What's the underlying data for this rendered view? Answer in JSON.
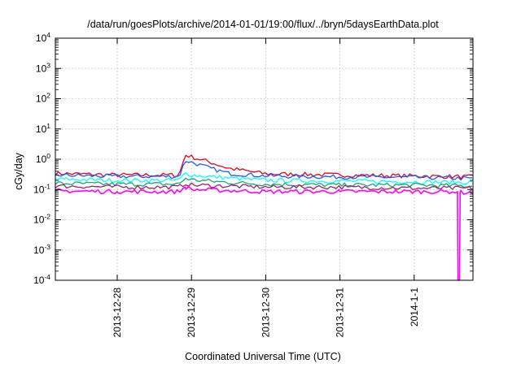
{
  "chart_data": {
    "type": "line",
    "title": "/data/run/goesPlots/archive/2014-01-01/19:00/flux/../bryn/5daysEarthData.plot",
    "xlabel": "Coordinated Universal Time (UTC)",
    "ylabel": "cGy/day",
    "yscale": "log",
    "ylim": [
      0.0001,
      10000
    ],
    "y_ticks": [
      {
        "value": 0.0001,
        "base": "10",
        "exp": "-4"
      },
      {
        "value": 0.001,
        "base": "10",
        "exp": "-3"
      },
      {
        "value": 0.01,
        "base": "10",
        "exp": "-2"
      },
      {
        "value": 0.1,
        "base": "10",
        "exp": "-1"
      },
      {
        "value": 1,
        "base": "10",
        "exp": "0"
      },
      {
        "value": 10,
        "base": "10",
        "exp": "1"
      },
      {
        "value": 100,
        "base": "10",
        "exp": "2"
      },
      {
        "value": 1000,
        "base": "10",
        "exp": "3"
      },
      {
        "value": 10000,
        "base": "10",
        "exp": "4"
      }
    ],
    "xlim": [
      "2013-12-27 04:00",
      "2014-01-01 19:00"
    ],
    "x_ticks": [
      {
        "label": "2013-12-28",
        "value": "2013-12-28"
      },
      {
        "label": "2013-12-29",
        "value": "2013-12-29"
      },
      {
        "label": "2013-12-30",
        "value": "2013-12-30"
      },
      {
        "label": "2013-12-31",
        "value": "2013-12-31"
      },
      {
        "label": "2014-1-1",
        "value": "2014-01-01"
      }
    ],
    "grid": true,
    "series": [
      {
        "color": "#e8001c",
        "x": [
          "2013-12-27 04:00",
          "2013-12-28 00:00",
          "2013-12-28 20:00",
          "2013-12-28 22:00",
          "2013-12-29 00:00",
          "2013-12-29 06:00",
          "2013-12-29 12:00",
          "2013-12-30 00:00",
          "2013-12-31 00:00",
          "2014-01-01 00:00",
          "2014-01-01 19:00"
        ],
        "y": [
          0.34,
          0.3,
          0.3,
          1.4,
          1.2,
          0.8,
          0.5,
          0.33,
          0.3,
          0.28,
          0.26
        ]
      },
      {
        "color": "#1a5cff",
        "x": [
          "2013-12-27 04:00",
          "2013-12-28 00:00",
          "2013-12-28 20:00",
          "2013-12-28 22:00",
          "2013-12-29 00:00",
          "2013-12-29 06:00",
          "2013-12-29 12:00",
          "2013-12-30 00:00",
          "2013-12-31 00:00",
          "2014-01-01 00:00",
          "2014-01-01 19:00"
        ],
        "y": [
          0.3,
          0.27,
          0.27,
          0.9,
          0.8,
          0.5,
          0.34,
          0.28,
          0.26,
          0.25,
          0.23
        ]
      },
      {
        "color": "#00ffff",
        "x": [
          "2013-12-27 04:00",
          "2013-12-28 00:00",
          "2013-12-28 20:00",
          "2013-12-28 22:00",
          "2013-12-29 00:00",
          "2013-12-29 12:00",
          "2013-12-30 00:00",
          "2013-12-31 00:00",
          "2014-01-01 00:00",
          "2014-01-01 19:00"
        ],
        "y": [
          0.22,
          0.2,
          0.2,
          0.35,
          0.3,
          0.24,
          0.2,
          0.19,
          0.18,
          0.17
        ]
      },
      {
        "color": "#1aa870",
        "x": [
          "2013-12-27 04:00",
          "2013-12-28 00:00",
          "2013-12-28 20:00",
          "2013-12-28 22:00",
          "2013-12-29 00:00",
          "2013-12-29 12:00",
          "2013-12-30 00:00",
          "2013-12-31 00:00",
          "2014-01-01 00:00",
          "2014-01-01 19:00"
        ],
        "y": [
          0.16,
          0.15,
          0.15,
          0.24,
          0.21,
          0.17,
          0.15,
          0.14,
          0.14,
          0.13
        ]
      },
      {
        "color": "#a0206e",
        "x": [
          "2013-12-27 04:00",
          "2013-12-28 00:00",
          "2013-12-28 20:00",
          "2013-12-28 22:00",
          "2013-12-29 00:00",
          "2013-12-30 00:00",
          "2013-12-31 00:00",
          "2014-01-01 00:00",
          "2014-01-01 19:00"
        ],
        "y": [
          0.13,
          0.12,
          0.12,
          0.16,
          0.14,
          0.12,
          0.12,
          0.11,
          0.11
        ]
      },
      {
        "color": "#ff00ff",
        "x": [
          "2013-12-27 04:00",
          "2013-12-28 00:00",
          "2013-12-28 20:00",
          "2013-12-28 22:00",
          "2013-12-29 00:00",
          "2013-12-30 00:00",
          "2013-12-31 00:00",
          "2014-01-01 00:00",
          "2014-01-01 14:00",
          "2014-01-01 14:10",
          "2014-01-01 14:40",
          "2014-01-01 14:50",
          "2014-01-01 19:00"
        ],
        "y": [
          0.09,
          0.085,
          0.085,
          0.12,
          0.1,
          0.085,
          0.085,
          0.085,
          0.085,
          0.0001,
          0.0001,
          0.08,
          0.08
        ]
      }
    ]
  }
}
